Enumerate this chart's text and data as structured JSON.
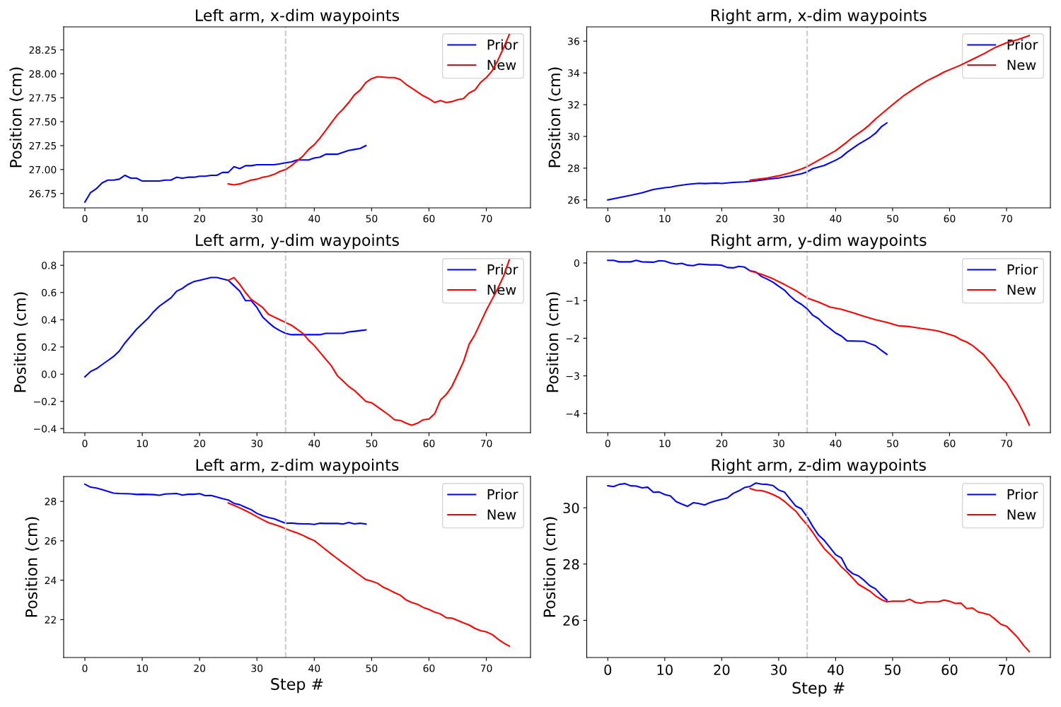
{
  "chart_data": [
    {
      "type": "line",
      "title": "Left arm, x-dim waypoints",
      "ylabel": "Position (cm)",
      "xlim": [
        -3.7,
        77.7
      ],
      "xticks": [
        0,
        10,
        20,
        30,
        40,
        50,
        60,
        70
      ],
      "ylim": [
        26.6,
        28.49
      ],
      "yticks": [
        26.75,
        {
          "value": 27.0,
          "label": "27.00"
        },
        27.25,
        {
          "value": 27.5,
          "label": "27.50"
        },
        27.75,
        {
          "value": 28.0,
          "label": "28.00"
        },
        28.25
      ],
      "legend": "top right",
      "grid": false,
      "ref_lines": [
        {
          "axis": "x",
          "value": 35,
          "color": "#cccccc",
          "line_style": "dashed"
        }
      ],
      "series": [
        {
          "name": "Prior",
          "color": "#0000ff",
          "x": [
            0,
            1,
            2,
            3,
            4,
            5,
            6,
            7,
            8,
            9,
            10,
            12,
            13,
            14,
            15,
            16,
            17,
            18,
            19,
            20,
            21,
            22,
            23,
            24,
            25,
            26,
            27,
            28,
            29,
            30,
            32,
            33,
            34,
            35,
            36,
            37,
            39,
            40,
            41,
            42,
            44,
            45,
            46,
            47,
            48,
            49
          ],
          "values": [
            26.66,
            26.76,
            26.8,
            26.86,
            26.89,
            26.89,
            26.9,
            26.94,
            26.91,
            26.91,
            26.88,
            26.88,
            26.88,
            26.89,
            26.89,
            26.92,
            26.91,
            26.92,
            26.92,
            26.93,
            26.93,
            26.94,
            26.94,
            26.97,
            26.97,
            27.03,
            27.01,
            27.04,
            27.04,
            27.05,
            27.05,
            27.05,
            27.06,
            27.07,
            27.08,
            27.1,
            27.1,
            27.12,
            27.13,
            27.16,
            27.16,
            27.18,
            27.2,
            27.21,
            27.22,
            27.25
          ]
        },
        {
          "name": "New",
          "color": "#ff0000",
          "x": [
            25,
            26,
            27,
            28,
            29,
            30,
            31,
            32,
            33,
            34,
            35,
            36,
            37,
            38,
            39,
            40,
            41,
            42,
            43,
            44,
            45,
            46,
            47,
            48,
            49,
            50,
            51,
            53,
            54,
            55,
            56,
            57,
            58,
            59,
            60,
            61,
            62,
            63,
            64,
            65,
            66,
            67,
            68,
            69,
            70,
            71,
            72,
            73,
            74
          ],
          "values": [
            26.85,
            26.84,
            26.85,
            26.87,
            26.89,
            26.9,
            26.92,
            26.93,
            26.95,
            26.98,
            27.0,
            27.04,
            27.09,
            27.14,
            27.21,
            27.26,
            27.33,
            27.41,
            27.49,
            27.57,
            27.63,
            27.7,
            27.78,
            27.83,
            27.91,
            27.95,
            27.97,
            27.96,
            27.96,
            27.94,
            27.89,
            27.85,
            27.81,
            27.77,
            27.74,
            27.7,
            27.72,
            27.7,
            27.71,
            27.73,
            27.74,
            27.8,
            27.83,
            27.91,
            27.96,
            28.03,
            28.14,
            28.27,
            28.41
          ]
        }
      ]
    },
    {
      "type": "line",
      "title": "Right arm, x-dim waypoints",
      "ylabel": "Position (cm)",
      "xlim": [
        -3.7,
        77.7
      ],
      "xticks": [
        0,
        10,
        20,
        30,
        40,
        50,
        60,
        70
      ],
      "ylim": [
        25.5,
        36.9
      ],
      "yticks": [
        26,
        28,
        30,
        32,
        34,
        36
      ],
      "legend": "top right",
      "grid": false,
      "ref_lines": [
        {
          "axis": "x",
          "value": 35,
          "color": "#cccccc",
          "line_style": "dashed"
        }
      ],
      "series": [
        {
          "name": "Prior",
          "color": "#0000ff",
          "x": [
            0,
            2,
            4,
            6,
            8,
            10,
            11,
            12,
            14,
            16,
            17,
            19,
            20,
            22,
            24,
            26,
            28,
            30,
            32,
            34,
            35,
            36,
            38,
            40,
            41,
            42,
            44,
            46,
            47,
            48,
            49
          ],
          "values": [
            26.0,
            26.15,
            26.29,
            26.45,
            26.66,
            26.77,
            26.8,
            26.88,
            26.98,
            27.05,
            27.03,
            27.06,
            27.04,
            27.1,
            27.14,
            27.2,
            27.3,
            27.38,
            27.5,
            27.65,
            27.77,
            27.97,
            28.17,
            28.5,
            28.7,
            29.0,
            29.5,
            29.93,
            30.2,
            30.6,
            30.85
          ]
        },
        {
          "name": "New",
          "color": "#ff0000",
          "x": [
            25,
            28,
            30,
            32,
            34,
            35,
            36,
            38,
            40,
            42,
            43,
            45,
            46,
            47,
            48,
            50,
            52,
            54,
            56,
            58,
            59,
            60,
            62,
            64,
            66,
            68,
            70,
            72,
            74
          ],
          "values": [
            27.25,
            27.38,
            27.52,
            27.7,
            27.95,
            28.1,
            28.3,
            28.7,
            29.1,
            29.65,
            29.95,
            30.45,
            30.75,
            31.1,
            31.4,
            32.0,
            32.58,
            33.05,
            33.5,
            33.85,
            34.05,
            34.2,
            34.5,
            34.85,
            35.2,
            35.6,
            35.9,
            36.1,
            36.35
          ]
        }
      ]
    },
    {
      "type": "line",
      "title": "Left arm, y-dim waypoints",
      "ylabel": "Position (cm)",
      "xlim": [
        -3.7,
        77.7
      ],
      "xticks": [
        0,
        10,
        20,
        30,
        40,
        50,
        60,
        70
      ],
      "ylim": [
        -0.43,
        0.9
      ],
      "yticks": [
        {
          "value": -0.4,
          "label": "−0.4"
        },
        {
          "value": -0.2,
          "label": "−0.2"
        },
        {
          "value": 0.0,
          "label": "0.0"
        },
        0.2,
        0.4,
        0.6,
        0.8
      ],
      "legend": "top right",
      "grid": false,
      "ref_lines": [
        {
          "axis": "x",
          "value": 35,
          "color": "#cccccc",
          "line_style": "dashed"
        }
      ],
      "series": [
        {
          "name": "Prior",
          "color": "#0000ff",
          "x": [
            0,
            1,
            2,
            3,
            4,
            5,
            6,
            7,
            8,
            9,
            10,
            11,
            12,
            13,
            14,
            15,
            16,
            17,
            18,
            19,
            20,
            21,
            22,
            23,
            24,
            25,
            26,
            27,
            28,
            29,
            30,
            31,
            32,
            33,
            34,
            35,
            36,
            38,
            40,
            41,
            42,
            44,
            45,
            46,
            47,
            48,
            49
          ],
          "values": [
            -0.02,
            0.02,
            0.04,
            0.07,
            0.1,
            0.13,
            0.17,
            0.23,
            0.28,
            0.33,
            0.37,
            0.41,
            0.46,
            0.5,
            0.53,
            0.56,
            0.61,
            0.63,
            0.66,
            0.68,
            0.69,
            0.7,
            0.71,
            0.71,
            0.7,
            0.69,
            0.65,
            0.61,
            0.54,
            0.54,
            0.49,
            0.42,
            0.38,
            0.345,
            0.32,
            0.3,
            0.29,
            0.29,
            0.29,
            0.29,
            0.3,
            0.3,
            0.3,
            0.31,
            0.315,
            0.32,
            0.325
          ]
        },
        {
          "name": "New",
          "color": "#ff0000",
          "x": [
            25,
            26,
            27,
            28,
            29,
            30,
            31,
            32,
            33,
            34,
            35,
            36,
            37,
            38,
            39,
            40,
            41,
            42,
            43,
            44,
            45,
            46,
            47,
            48,
            49,
            50,
            51,
            52,
            53,
            54,
            55,
            56,
            57,
            58,
            59,
            60,
            61,
            62,
            63,
            64,
            65,
            66,
            67,
            68,
            69,
            70,
            71,
            72,
            73,
            74
          ],
          "values": [
            0.69,
            0.71,
            0.66,
            0.6,
            0.55,
            0.52,
            0.49,
            0.44,
            0.42,
            0.4,
            0.38,
            0.36,
            0.33,
            0.3,
            0.25,
            0.21,
            0.16,
            0.11,
            0.06,
            -0.01,
            -0.05,
            -0.09,
            -0.12,
            -0.16,
            -0.2,
            -0.21,
            -0.24,
            -0.27,
            -0.3,
            -0.335,
            -0.34,
            -0.36,
            -0.375,
            -0.36,
            -0.335,
            -0.33,
            -0.29,
            -0.19,
            -0.15,
            -0.09,
            0.0,
            0.09,
            0.22,
            0.29,
            0.38,
            0.47,
            0.55,
            0.63,
            0.72,
            0.84
          ]
        }
      ]
    },
    {
      "type": "line",
      "title": "Right arm, y-dim waypoints",
      "ylabel": "Position (cm)",
      "xlim": [
        -3.7,
        77.7
      ],
      "xticks": [
        0,
        10,
        20,
        30,
        40,
        50,
        60,
        70
      ],
      "ylim": [
        -4.51,
        0.3
      ],
      "yticks": [
        {
          "value": -4,
          "label": "−4"
        },
        {
          "value": -3,
          "label": "−3"
        },
        {
          "value": -2,
          "label": "−2"
        },
        {
          "value": -1,
          "label": "−1"
        },
        0
      ],
      "legend": "top right",
      "grid": false,
      "ref_lines": [
        {
          "axis": "x",
          "value": 35,
          "color": "#cccccc",
          "line_style": "dashed"
        }
      ],
      "series": [
        {
          "name": "Prior",
          "color": "#0000ff",
          "x": [
            0,
            1,
            2,
            3,
            4,
            5,
            6,
            8,
            9,
            10,
            11,
            12,
            13,
            14,
            15,
            16,
            18,
            19,
            20,
            21,
            22,
            23,
            24,
            25,
            26,
            27,
            28,
            29,
            30,
            31,
            32,
            33,
            34,
            35,
            36,
            37,
            38,
            39,
            40,
            41,
            42,
            45,
            46,
            47,
            48,
            49
          ],
          "values": [
            0.07,
            0.07,
            0.03,
            0.03,
            0.03,
            0.07,
            0.03,
            0.02,
            0.06,
            0.05,
            0.0,
            -0.03,
            -0.01,
            -0.06,
            -0.07,
            -0.03,
            -0.05,
            -0.05,
            -0.06,
            -0.12,
            -0.13,
            -0.09,
            -0.11,
            -0.21,
            -0.24,
            -0.36,
            -0.43,
            -0.51,
            -0.62,
            -0.72,
            -0.88,
            -1.01,
            -1.1,
            -1.22,
            -1.39,
            -1.48,
            -1.63,
            -1.74,
            -1.86,
            -1.94,
            -2.07,
            -2.08,
            -2.14,
            -2.2,
            -2.32,
            -2.43
          ]
        },
        {
          "name": "New",
          "color": "#ff0000",
          "x": [
            25,
            27,
            29,
            31,
            33,
            35,
            37,
            39,
            41,
            43,
            45,
            47,
            49,
            51,
            53,
            55,
            57,
            58,
            60,
            61,
            62,
            63,
            64,
            66,
            68,
            69,
            70,
            71,
            72,
            73,
            74
          ],
          "values": [
            -0.21,
            -0.3,
            -0.42,
            -0.57,
            -0.73,
            -0.93,
            -1.04,
            -1.17,
            -1.23,
            -1.32,
            -1.42,
            -1.51,
            -1.58,
            -1.67,
            -1.69,
            -1.74,
            -1.78,
            -1.81,
            -1.9,
            -1.95,
            -2.04,
            -2.1,
            -2.19,
            -2.44,
            -2.8,
            -3.02,
            -3.19,
            -3.45,
            -3.69,
            -3.98,
            -4.31
          ]
        }
      ]
    },
    {
      "type": "line",
      "title": "Left arm, z-dim waypoints",
      "xlabel": "Step #",
      "ylabel": "Position (cm)",
      "xlim": [
        -3.7,
        77.7
      ],
      "xticks": [
        0,
        10,
        20,
        30,
        40,
        50,
        60,
        70
      ],
      "ylim": [
        20.08,
        29.26
      ],
      "yticks": [
        22,
        24,
        26,
        28
      ],
      "legend": "top right",
      "grid": false,
      "ref_lines": [
        {
          "axis": "x",
          "value": 35,
          "color": "#cccccc",
          "line_style": "dashed"
        }
      ],
      "series": [
        {
          "name": "Prior",
          "color": "#0000ff",
          "x": [
            0,
            1,
            2,
            3,
            4,
            5,
            6,
            8,
            9,
            10,
            12,
            13,
            14,
            16,
            17,
            18,
            19,
            20,
            21,
            22,
            23,
            24,
            25,
            26,
            27,
            28,
            29,
            30,
            31,
            32,
            33,
            34,
            35,
            36,
            37,
            38,
            39,
            40,
            41,
            42,
            44,
            45,
            46,
            47,
            48,
            49
          ],
          "values": [
            28.87,
            28.72,
            28.68,
            28.6,
            28.51,
            28.42,
            28.4,
            28.38,
            28.35,
            28.36,
            28.34,
            28.31,
            28.37,
            28.4,
            28.32,
            28.36,
            28.36,
            28.39,
            28.29,
            28.3,
            28.22,
            28.14,
            28.07,
            27.9,
            27.83,
            27.7,
            27.58,
            27.39,
            27.27,
            27.18,
            27.12,
            27.0,
            26.89,
            26.9,
            26.87,
            26.86,
            26.86,
            26.83,
            26.89,
            26.88,
            26.88,
            26.85,
            26.93,
            26.86,
            26.89,
            26.85
          ]
        },
        {
          "name": "New",
          "color": "#ff0000",
          "x": [
            25,
            26,
            27,
            28,
            29,
            30,
            31,
            32,
            33,
            34,
            35,
            36,
            37,
            38,
            39,
            40,
            41,
            42,
            43,
            44,
            45,
            46,
            47,
            48,
            49,
            50,
            51,
            52,
            53,
            54,
            55,
            56,
            57,
            58,
            59,
            60,
            61,
            62,
            63,
            64,
            65,
            66,
            67,
            68,
            69,
            70,
            71,
            72,
            73,
            74
          ],
          "values": [
            27.92,
            27.8,
            27.67,
            27.53,
            27.38,
            27.22,
            27.07,
            26.92,
            26.83,
            26.73,
            26.61,
            26.5,
            26.4,
            26.28,
            26.13,
            26.01,
            25.78,
            25.55,
            25.32,
            25.1,
            24.88,
            24.67,
            24.45,
            24.24,
            24.03,
            23.95,
            23.85,
            23.65,
            23.52,
            23.37,
            23.24,
            23.0,
            22.87,
            22.78,
            22.62,
            22.52,
            22.38,
            22.29,
            22.1,
            22.08,
            21.96,
            21.84,
            21.73,
            21.56,
            21.44,
            21.38,
            21.25,
            21.02,
            20.82,
            20.66
          ]
        }
      ]
    },
    {
      "type": "line",
      "title": "Right arm, z-dim waypoints",
      "xlabel": "Step #",
      "ylabel": "Position (cm)",
      "xlim": [
        -3.7,
        77.7
      ],
      "xticks": [
        0,
        10,
        20,
        30,
        40,
        50,
        60,
        70
      ],
      "ylim": [
        24.68,
        31.11
      ],
      "yticks": [
        26,
        28,
        30
      ],
      "legend": "top right",
      "grid": false,
      "ref_lines": [
        {
          "axis": "x",
          "value": 35,
          "color": "#cccccc",
          "line_style": "dashed"
        }
      ],
      "series": [
        {
          "name": "Prior",
          "color": "#0000ff",
          "x": [
            0,
            1,
            2,
            3,
            4,
            5,
            6,
            7,
            8,
            9,
            10,
            11,
            12,
            13,
            14,
            15,
            16,
            17,
            18,
            19,
            20,
            21,
            22,
            23,
            24,
            25,
            26,
            27,
            28,
            29,
            30,
            31,
            32,
            33,
            34,
            35,
            36,
            37,
            38,
            39,
            40,
            41,
            42,
            43,
            44,
            45,
            46,
            47,
            48,
            49
          ],
          "values": [
            30.78,
            30.75,
            30.83,
            30.86,
            30.78,
            30.77,
            30.71,
            30.73,
            30.55,
            30.56,
            30.47,
            30.42,
            30.22,
            30.13,
            30.05,
            30.18,
            30.15,
            30.1,
            30.19,
            30.25,
            30.3,
            30.35,
            30.51,
            30.6,
            30.72,
            30.76,
            30.88,
            30.84,
            30.83,
            30.79,
            30.63,
            30.56,
            30.31,
            30.06,
            29.96,
            29.68,
            29.33,
            29.03,
            28.84,
            28.59,
            28.33,
            28.22,
            27.83,
            27.66,
            27.58,
            27.42,
            27.23,
            27.12,
            26.9,
            26.72
          ]
        },
        {
          "name": "New",
          "color": "#ff0000",
          "x": [
            25,
            26,
            27,
            28,
            29,
            30,
            31,
            32,
            33,
            34,
            35,
            36,
            37,
            38,
            39,
            40,
            41,
            42,
            43,
            44,
            45,
            46,
            47,
            48,
            49,
            50,
            52,
            53,
            54,
            55,
            56,
            58,
            59,
            60,
            61,
            62,
            63,
            64,
            65,
            66,
            67,
            68,
            69,
            70,
            71,
            72,
            73,
            74
          ],
          "values": [
            30.68,
            30.62,
            30.61,
            30.55,
            30.47,
            30.37,
            30.23,
            30.05,
            29.88,
            29.62,
            29.4,
            29.12,
            28.82,
            28.55,
            28.35,
            28.14,
            27.9,
            27.72,
            27.5,
            27.28,
            27.16,
            27.04,
            26.87,
            26.74,
            26.66,
            26.68,
            26.68,
            26.75,
            26.64,
            26.61,
            26.66,
            26.66,
            26.72,
            26.68,
            26.6,
            26.61,
            26.42,
            26.44,
            26.3,
            26.25,
            26.2,
            26.04,
            25.86,
            25.79,
            25.59,
            25.38,
            25.11,
            24.89
          ]
        }
      ]
    }
  ]
}
